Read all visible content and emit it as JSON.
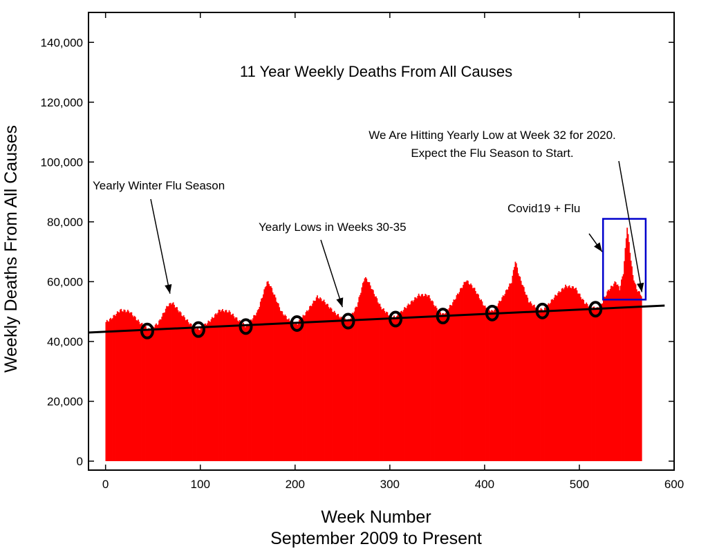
{
  "colors": {
    "bars": "#ff0000",
    "trend": "#000000",
    "highlight_box": "#0000cc",
    "markers": "#000000"
  },
  "chart_data": {
    "type": "bar",
    "title": "11 Year Weekly Deaths From All Causes",
    "xlabel": "Week Number",
    "xlabel_line2": "September 2009 to Present",
    "ylabel": "Weekly Deaths From All Causes",
    "xlim": [
      -18,
      600
    ],
    "ylim": [
      -3000,
      150000
    ],
    "x_ticks": [
      0,
      100,
      200,
      300,
      400,
      500,
      600
    ],
    "x_tick_labels": [
      "0",
      "100",
      "200",
      "300",
      "400",
      "500",
      "600"
    ],
    "y_ticks": [
      0,
      20000,
      40000,
      60000,
      80000,
      100000,
      120000,
      140000
    ],
    "y_tick_labels": [
      "0",
      "20,000",
      "40,000",
      "60,000",
      "80,000",
      "100,000",
      "120,000",
      "140,000"
    ],
    "grid": false,
    "weeks_range": [
      0,
      565
    ],
    "weekly_deaths_keypoints": [
      [
        0,
        46500
      ],
      [
        5,
        47500
      ],
      [
        15,
        50500
      ],
      [
        25,
        50000
      ],
      [
        35,
        46500
      ],
      [
        45,
        44000
      ],
      [
        55,
        46000
      ],
      [
        65,
        52000
      ],
      [
        70,
        53000
      ],
      [
        80,
        49000
      ],
      [
        90,
        45500
      ],
      [
        98,
        44000
      ],
      [
        110,
        47000
      ],
      [
        120,
        50500
      ],
      [
        130,
        50000
      ],
      [
        140,
        47000
      ],
      [
        148,
        45000
      ],
      [
        160,
        50000
      ],
      [
        170,
        60000
      ],
      [
        173,
        59000
      ],
      [
        185,
        50000
      ],
      [
        195,
        46500
      ],
      [
        202,
        46000
      ],
      [
        212,
        50000
      ],
      [
        223,
        55000
      ],
      [
        230,
        53500
      ],
      [
        240,
        50000
      ],
      [
        250,
        47500
      ],
      [
        256,
        47000
      ],
      [
        265,
        52000
      ],
      [
        273,
        61500
      ],
      [
        277,
        60000
      ],
      [
        290,
        51500
      ],
      [
        300,
        48500
      ],
      [
        306,
        48000
      ],
      [
        315,
        51000
      ],
      [
        330,
        55500
      ],
      [
        340,
        55500
      ],
      [
        350,
        50500
      ],
      [
        356,
        49000
      ],
      [
        365,
        52500
      ],
      [
        380,
        60500
      ],
      [
        388,
        58000
      ],
      [
        400,
        51500
      ],
      [
        408,
        50000
      ],
      [
        418,
        54500
      ],
      [
        428,
        60000
      ],
      [
        432,
        67000
      ],
      [
        436,
        62000
      ],
      [
        446,
        53500
      ],
      [
        455,
        51000
      ],
      [
        462,
        50500
      ],
      [
        475,
        55500
      ],
      [
        485,
        58500
      ],
      [
        495,
        58000
      ],
      [
        505,
        53000
      ],
      [
        512,
        51500
      ],
      [
        518,
        51000
      ],
      [
        522,
        52000
      ],
      [
        530,
        57000
      ],
      [
        538,
        60000
      ],
      [
        542,
        57500
      ],
      [
        546,
        63000
      ],
      [
        550,
        78500
      ],
      [
        553,
        70000
      ],
      [
        556,
        62000
      ],
      [
        560,
        57500
      ],
      [
        565,
        55500
      ]
    ],
    "trend_line": {
      "x": [
        -18,
        590
      ],
      "y": [
        43000,
        52000
      ]
    },
    "yearly_low_markers": [
      {
        "x": 44,
        "y": 43500
      },
      {
        "x": 98,
        "y": 44000
      },
      {
        "x": 148,
        "y": 45000
      },
      {
        "x": 202,
        "y": 46000
      },
      {
        "x": 256,
        "y": 46800
      },
      {
        "x": 306,
        "y": 47500
      },
      {
        "x": 356,
        "y": 48500
      },
      {
        "x": 408,
        "y": 49500
      },
      {
        "x": 461,
        "y": 50200
      },
      {
        "x": 517,
        "y": 50800
      }
    ],
    "highlight_box": {
      "x": [
        525,
        570
      ],
      "y": [
        54000,
        81000
      ]
    },
    "annotations": [
      {
        "text": "Yearly Winter Flu Season",
        "arrow_to": [
          68,
          56000
        ]
      },
      {
        "text": "Yearly Lows in Weeks 30-35",
        "arrow_to": [
          250,
          51500
        ]
      },
      {
        "text": "Covid19 + Flu",
        "arrow_to": [
          524,
          70000
        ]
      },
      {
        "lines": [
          "We Are Hitting Yearly Low at Week 32 for 2020.",
          "Expect the Flu Season to Start."
        ],
        "arrow_to": [
          566,
          56500
        ]
      }
    ]
  }
}
